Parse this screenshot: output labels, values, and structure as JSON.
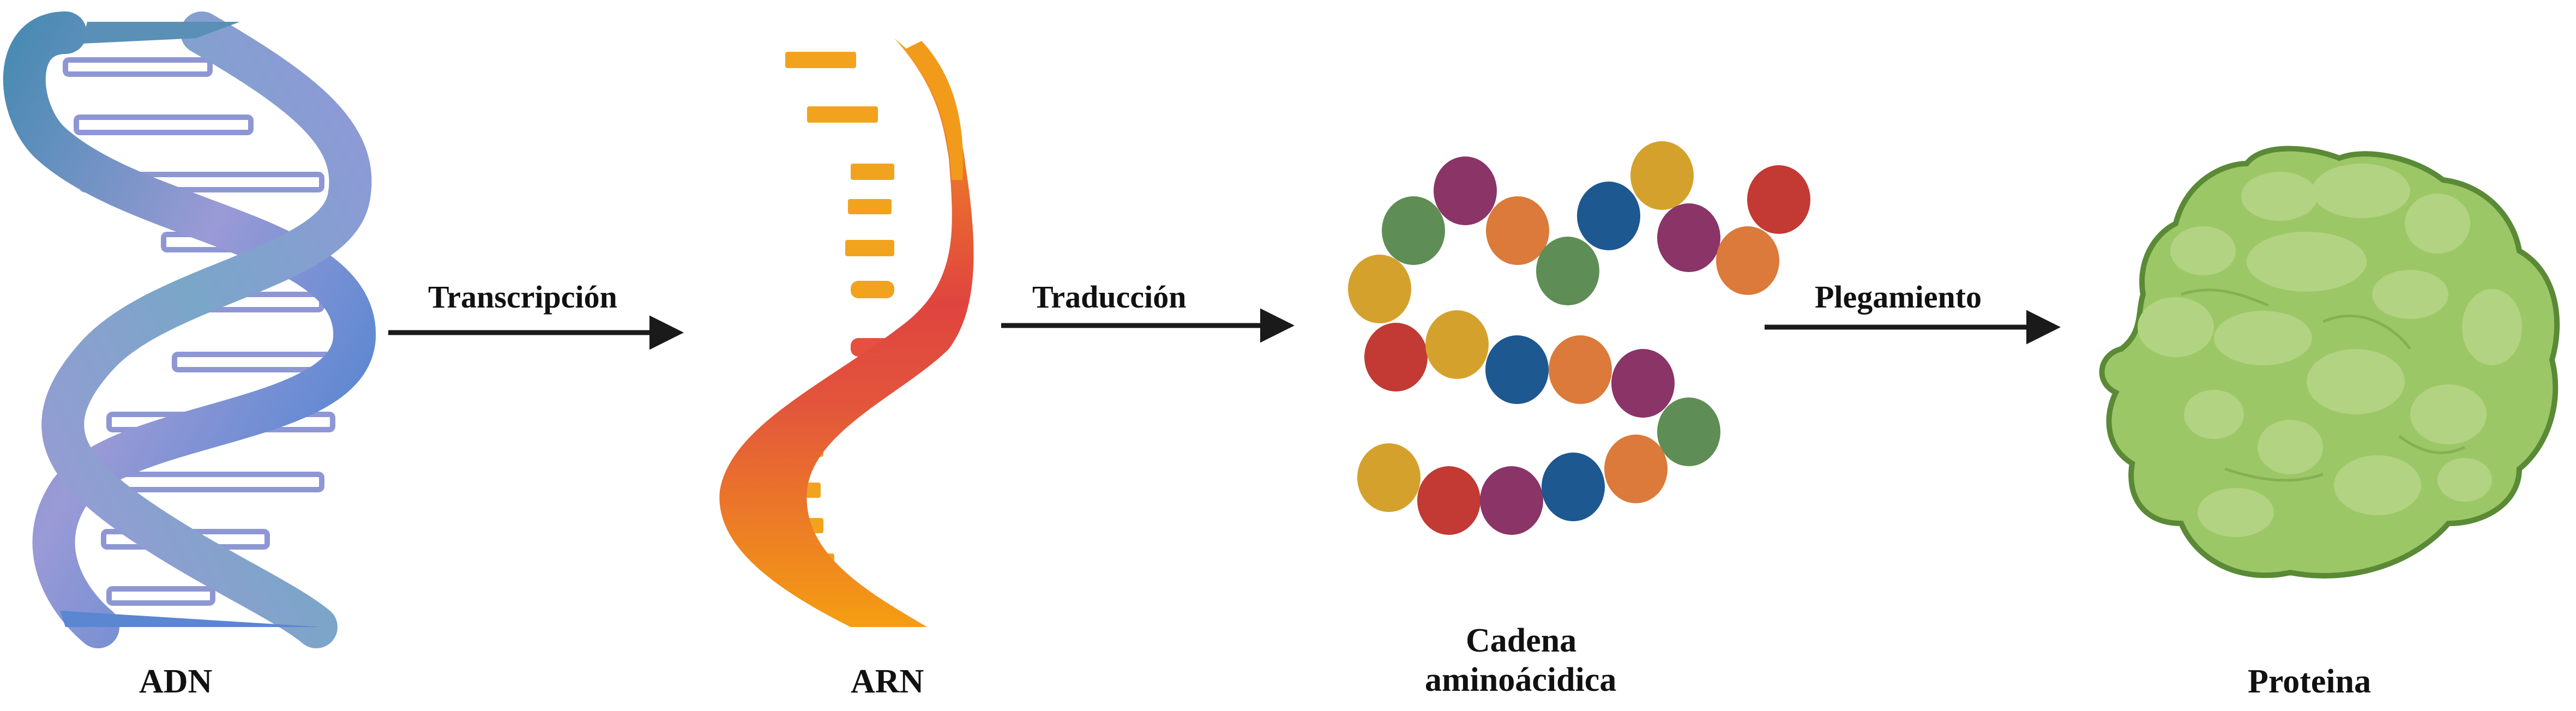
{
  "stages": [
    {
      "id": "adn",
      "label": "ADN"
    },
    {
      "id": "arn",
      "label": "ARN"
    },
    {
      "id": "cadena",
      "label_line1": "Cadena",
      "label_line2": "aminoácidica"
    },
    {
      "id": "proteina",
      "label": "Proteina"
    }
  ],
  "processes": [
    {
      "id": "transcripcion",
      "label": "Transcripción"
    },
    {
      "id": "traduccion",
      "label": "Traducción"
    },
    {
      "id": "plegamiento",
      "label": "Plegamiento"
    }
  ],
  "colors": {
    "dna_blue": "#4a8fc4",
    "dna_violet": "#8f96d6",
    "rna_orange": "#f5a21b",
    "rna_red": "#e34a4f",
    "bead_red": "#c23a33",
    "bead_gold": "#d4a22c",
    "bead_blue": "#1d5891",
    "bead_orange": "#db7a3a",
    "bead_purple": "#8a3468",
    "bead_green": "#5e8e55",
    "protein_fill": "#9cc766",
    "protein_outline": "#5a8a36",
    "arrow": "#1a1a1a"
  }
}
